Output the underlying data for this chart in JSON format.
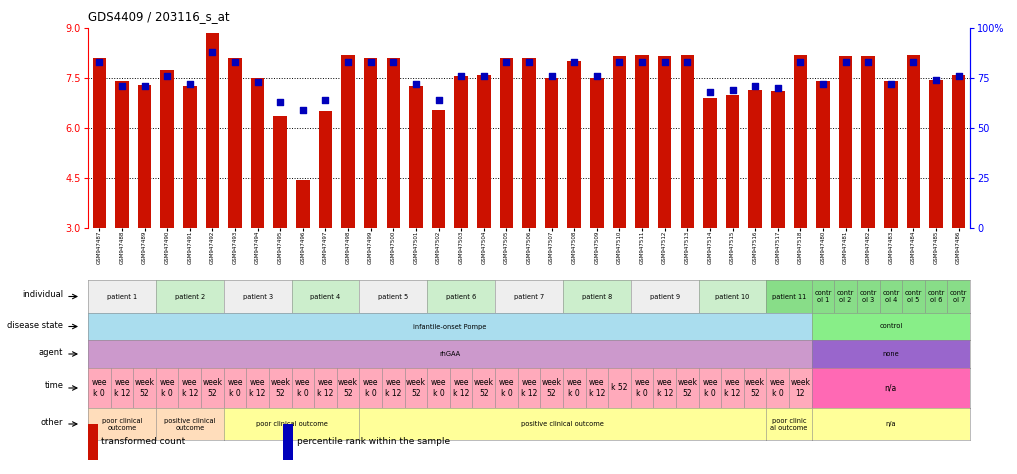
{
  "title": "GDS4409 / 203116_s_at",
  "samples": [
    "GSM947487",
    "GSM947488",
    "GSM947489",
    "GSM947490",
    "GSM947491",
    "GSM947492",
    "GSM947493",
    "GSM947494",
    "GSM947495",
    "GSM947496",
    "GSM947497",
    "GSM947498",
    "GSM947499",
    "GSM947500",
    "GSM947501",
    "GSM947502",
    "GSM947503",
    "GSM947504",
    "GSM947505",
    "GSM947506",
    "GSM947507",
    "GSM947508",
    "GSM947509",
    "GSM947510",
    "GSM947511",
    "GSM947512",
    "GSM947513",
    "GSM947514",
    "GSM947515",
    "GSM947516",
    "GSM947517",
    "GSM947518",
    "GSM947480",
    "GSM947481",
    "GSM947482",
    "GSM947483",
    "GSM947484",
    "GSM947485",
    "GSM947486"
  ],
  "bar_values": [
    8.1,
    7.4,
    7.3,
    7.75,
    7.25,
    8.85,
    8.1,
    7.5,
    6.35,
    4.45,
    6.5,
    8.2,
    8.1,
    8.1,
    7.25,
    6.55,
    7.55,
    7.6,
    8.1,
    8.1,
    7.5,
    8.0,
    7.5,
    8.15,
    8.2,
    8.15,
    8.2,
    6.9,
    7.0,
    7.15,
    7.1,
    8.2,
    7.4,
    8.15,
    8.15,
    7.4,
    8.2,
    7.45,
    7.6
  ],
  "dot_values_pct": [
    83,
    71,
    71,
    76,
    72,
    88,
    83,
    73,
    63,
    59,
    64,
    83,
    83,
    83,
    72,
    64,
    76,
    76,
    83,
    83,
    76,
    83,
    76,
    83,
    83,
    83,
    83,
    68,
    69,
    71,
    70,
    83,
    72,
    83,
    83,
    72,
    83,
    74,
    76
  ],
  "ylim_left": [
    3.0,
    9.0
  ],
  "ylim_right": [
    0,
    100
  ],
  "yticks_left": [
    3.0,
    4.5,
    6.0,
    7.5,
    9.0
  ],
  "yticks_right": [
    0,
    25,
    50,
    75,
    100
  ],
  "bar_color": "#CC1100",
  "dot_color": "#0000BB",
  "gridlines": [
    7.5,
    6.0,
    4.5
  ],
  "individual_groups": [
    {
      "label": "patient 1",
      "start": 0,
      "end": 2,
      "color": "#eeeeee"
    },
    {
      "label": "patient 2",
      "start": 3,
      "end": 5,
      "color": "#cceecc"
    },
    {
      "label": "patient 3",
      "start": 6,
      "end": 8,
      "color": "#eeeeee"
    },
    {
      "label": "patient 4",
      "start": 9,
      "end": 11,
      "color": "#cceecc"
    },
    {
      "label": "patient 5",
      "start": 12,
      "end": 14,
      "color": "#eeeeee"
    },
    {
      "label": "patient 6",
      "start": 15,
      "end": 17,
      "color": "#cceecc"
    },
    {
      "label": "patient 7",
      "start": 18,
      "end": 20,
      "color": "#eeeeee"
    },
    {
      "label": "patient 8",
      "start": 21,
      "end": 23,
      "color": "#cceecc"
    },
    {
      "label": "patient 9",
      "start": 24,
      "end": 26,
      "color": "#eeeeee"
    },
    {
      "label": "patient 10",
      "start": 27,
      "end": 29,
      "color": "#cceecc"
    },
    {
      "label": "patient 11",
      "start": 30,
      "end": 31,
      "color": "#88dd88"
    },
    {
      "label": "contr\nol 1",
      "start": 32,
      "end": 32,
      "color": "#88dd88"
    },
    {
      "label": "contr\nol 2",
      "start": 33,
      "end": 33,
      "color": "#88dd88"
    },
    {
      "label": "contr\nol 3",
      "start": 34,
      "end": 34,
      "color": "#88dd88"
    },
    {
      "label": "contr\nol 4",
      "start": 35,
      "end": 35,
      "color": "#88dd88"
    },
    {
      "label": "contr\nol 5",
      "start": 36,
      "end": 36,
      "color": "#88dd88"
    },
    {
      "label": "contr\nol 6",
      "start": 37,
      "end": 37,
      "color": "#88dd88"
    },
    {
      "label": "contr\nol 7",
      "start": 38,
      "end": 38,
      "color": "#88dd88"
    }
  ],
  "disease_state_groups": [
    {
      "label": "infantile-onset Pompe",
      "start": 0,
      "end": 31,
      "color": "#aaddee"
    },
    {
      "label": "control",
      "start": 32,
      "end": 38,
      "color": "#88ee88"
    }
  ],
  "agent_groups": [
    {
      "label": "rhGAA",
      "start": 0,
      "end": 31,
      "color": "#cc99cc"
    },
    {
      "label": "none",
      "start": 32,
      "end": 38,
      "color": "#9966cc"
    }
  ],
  "time_groups": [
    {
      "label": "wee\nk 0",
      "start": 0,
      "end": 0,
      "color": "#ffaabb"
    },
    {
      "label": "wee\nk 12",
      "start": 1,
      "end": 1,
      "color": "#ffaabb"
    },
    {
      "label": "week\n52",
      "start": 2,
      "end": 2,
      "color": "#ffaabb"
    },
    {
      "label": "wee\nk 0",
      "start": 3,
      "end": 3,
      "color": "#ffaabb"
    },
    {
      "label": "wee\nk 12",
      "start": 4,
      "end": 4,
      "color": "#ffaabb"
    },
    {
      "label": "week\n52",
      "start": 5,
      "end": 5,
      "color": "#ffaabb"
    },
    {
      "label": "wee\nk 0",
      "start": 6,
      "end": 6,
      "color": "#ffaabb"
    },
    {
      "label": "wee\nk 12",
      "start": 7,
      "end": 7,
      "color": "#ffaabb"
    },
    {
      "label": "week\n52",
      "start": 8,
      "end": 8,
      "color": "#ffaabb"
    },
    {
      "label": "wee\nk 0",
      "start": 9,
      "end": 9,
      "color": "#ffaabb"
    },
    {
      "label": "wee\nk 12",
      "start": 10,
      "end": 10,
      "color": "#ffaabb"
    },
    {
      "label": "week\n52",
      "start": 11,
      "end": 11,
      "color": "#ffaabb"
    },
    {
      "label": "wee\nk 0",
      "start": 12,
      "end": 12,
      "color": "#ffaabb"
    },
    {
      "label": "wee\nk 12",
      "start": 13,
      "end": 13,
      "color": "#ffaabb"
    },
    {
      "label": "week\n52",
      "start": 14,
      "end": 14,
      "color": "#ffaabb"
    },
    {
      "label": "wee\nk 0",
      "start": 15,
      "end": 15,
      "color": "#ffaabb"
    },
    {
      "label": "wee\nk 12",
      "start": 16,
      "end": 16,
      "color": "#ffaabb"
    },
    {
      "label": "week\n52",
      "start": 17,
      "end": 17,
      "color": "#ffaabb"
    },
    {
      "label": "wee\nk 0",
      "start": 18,
      "end": 18,
      "color": "#ffaabb"
    },
    {
      "label": "wee\nk 12",
      "start": 19,
      "end": 19,
      "color": "#ffaabb"
    },
    {
      "label": "week\n52",
      "start": 20,
      "end": 20,
      "color": "#ffaabb"
    },
    {
      "label": "wee\nk 0",
      "start": 21,
      "end": 21,
      "color": "#ffaabb"
    },
    {
      "label": "wee\nk 12",
      "start": 22,
      "end": 22,
      "color": "#ffaabb"
    },
    {
      "label": "k 52",
      "start": 23,
      "end": 23,
      "color": "#ffaabb"
    },
    {
      "label": "wee\nk 0",
      "start": 24,
      "end": 24,
      "color": "#ffaabb"
    },
    {
      "label": "wee\nk 12",
      "start": 25,
      "end": 25,
      "color": "#ffaabb"
    },
    {
      "label": "week\n52",
      "start": 26,
      "end": 26,
      "color": "#ffaabb"
    },
    {
      "label": "wee\nk 0",
      "start": 27,
      "end": 27,
      "color": "#ffaabb"
    },
    {
      "label": "wee\nk 12",
      "start": 28,
      "end": 28,
      "color": "#ffaabb"
    },
    {
      "label": "week\n52",
      "start": 29,
      "end": 29,
      "color": "#ffaabb"
    },
    {
      "label": "wee\nk 0",
      "start": 30,
      "end": 30,
      "color": "#ffaabb"
    },
    {
      "label": "week\n12",
      "start": 31,
      "end": 31,
      "color": "#ffaabb"
    },
    {
      "label": "n/a",
      "start": 32,
      "end": 38,
      "color": "#ff69b4"
    }
  ],
  "other_groups": [
    {
      "label": "poor clinical\noutcome",
      "start": 0,
      "end": 2,
      "color": "#ffddbb"
    },
    {
      "label": "positive clinical\noutcome",
      "start": 3,
      "end": 5,
      "color": "#ffddbb"
    },
    {
      "label": "poor clinical outcome",
      "start": 6,
      "end": 11,
      "color": "#ffff99"
    },
    {
      "label": "positive clinical outcome",
      "start": 12,
      "end": 29,
      "color": "#ffff99"
    },
    {
      "label": "poor clinic\nal outcome",
      "start": 30,
      "end": 31,
      "color": "#ffff99"
    },
    {
      "label": "n/a",
      "start": 32,
      "end": 38,
      "color": "#ffff99"
    }
  ],
  "row_labels": [
    "individual",
    "disease state",
    "agent",
    "time",
    "other"
  ],
  "legend_items": [
    {
      "color": "#CC1100",
      "label": "transformed count"
    },
    {
      "color": "#0000BB",
      "label": "percentile rank within the sample"
    }
  ],
  "fig_width": 10.17,
  "fig_height": 4.74,
  "dpi": 100
}
